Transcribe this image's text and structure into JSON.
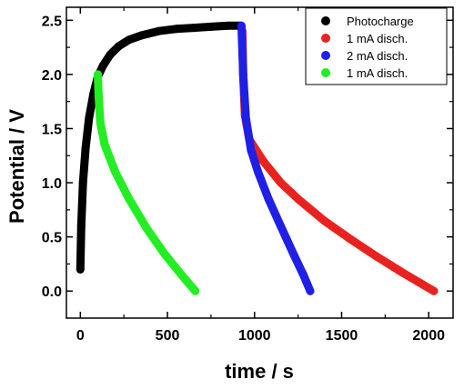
{
  "chart_data": {
    "type": "scatter",
    "xlabel": "time / s",
    "ylabel": "Potential / V",
    "xlim": [
      -80,
      2140
    ],
    "ylim": [
      -0.25,
      2.62
    ],
    "x_ticks": [
      0,
      500,
      1000,
      1500,
      2000
    ],
    "y_ticks": [
      0.0,
      0.5,
      1.0,
      1.5,
      2.0,
      2.5
    ],
    "x_tick_labels": [
      "0",
      "500",
      "1000",
      "1500",
      "2000"
    ],
    "y_tick_labels": [
      "0.0",
      "0.5",
      "1.0",
      "1.5",
      "2.0",
      "2.5"
    ],
    "grid": false,
    "legend_position": "top-right",
    "series": [
      {
        "name": "Photocharge",
        "color": "#000000",
        "points": [
          [
            0,
            0.2
          ],
          [
            5,
            0.6
          ],
          [
            15,
            1.0
          ],
          [
            30,
            1.32
          ],
          [
            50,
            1.6
          ],
          [
            75,
            1.82
          ],
          [
            100,
            1.98
          ],
          [
            130,
            2.08
          ],
          [
            170,
            2.18
          ],
          [
            220,
            2.26
          ],
          [
            280,
            2.32
          ],
          [
            350,
            2.36
          ],
          [
            450,
            2.4
          ],
          [
            550,
            2.42
          ],
          [
            650,
            2.43
          ],
          [
            750,
            2.44
          ],
          [
            850,
            2.45
          ],
          [
            920,
            2.45
          ]
        ]
      },
      {
        "name": "1 mA disch.",
        "color": "#e8231f",
        "points": [
          [
            930,
            2.4
          ],
          [
            935,
            2.0
          ],
          [
            945,
            1.62
          ],
          [
            970,
            1.4
          ],
          [
            1050,
            1.2
          ],
          [
            1150,
            1.0
          ],
          [
            1250,
            0.85
          ],
          [
            1400,
            0.65
          ],
          [
            1550,
            0.48
          ],
          [
            1700,
            0.32
          ],
          [
            1850,
            0.17
          ],
          [
            2030,
            0.0
          ]
        ]
      },
      {
        "name": "2 mA disch.",
        "color": "#1f1fe6",
        "points": [
          [
            925,
            2.45
          ],
          [
            935,
            2.0
          ],
          [
            950,
            1.6
          ],
          [
            980,
            1.3
          ],
          [
            1020,
            1.1
          ],
          [
            1080,
            0.85
          ],
          [
            1150,
            0.6
          ],
          [
            1230,
            0.32
          ],
          [
            1280,
            0.15
          ],
          [
            1320,
            0.0
          ]
        ]
      },
      {
        "name": "1 mA disch.",
        "color": "#22ee22",
        "points": [
          [
            100,
            2.0
          ],
          [
            105,
            1.8
          ],
          [
            115,
            1.55
          ],
          [
            140,
            1.35
          ],
          [
            200,
            1.1
          ],
          [
            280,
            0.85
          ],
          [
            380,
            0.58
          ],
          [
            480,
            0.35
          ],
          [
            580,
            0.15
          ],
          [
            660,
            0.0
          ]
        ]
      }
    ]
  }
}
